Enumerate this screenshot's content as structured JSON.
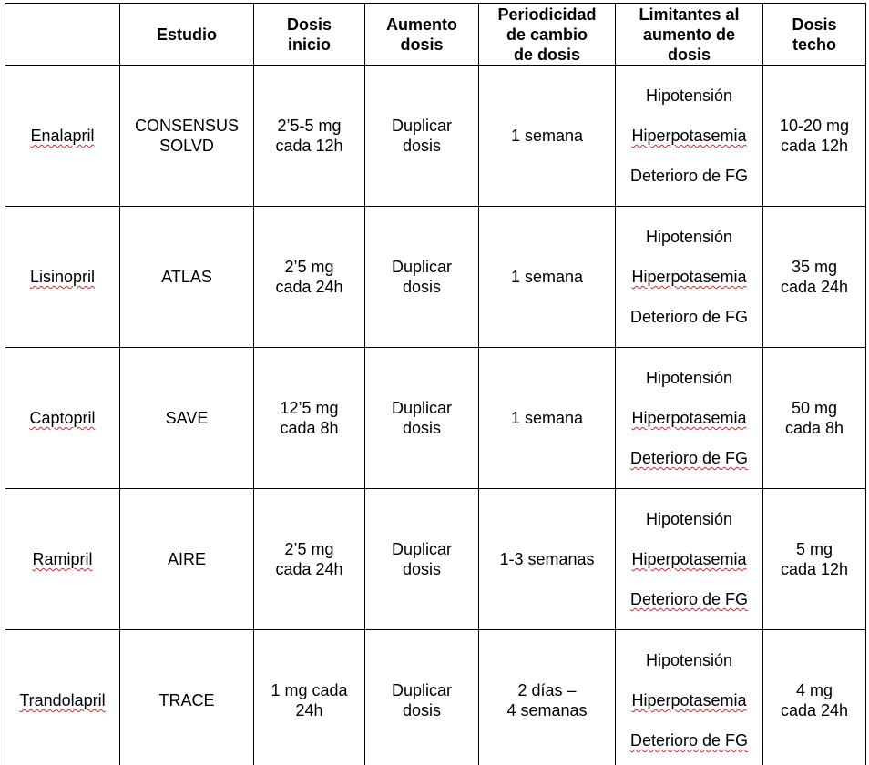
{
  "table": {
    "headers": [
      "",
      "Estudio",
      "Dosis\ninicio",
      "Aumento\ndosis",
      "Periodicidad\nde cambio\nde dosis",
      "Limitantes al\naumento de\ndosis",
      "Dosis\ntecho"
    ],
    "rows": [
      {
        "drug": "Enalapril",
        "study": "CONSENSUS\nSOLVD",
        "start_dose": "2’5-5 mg\ncada 12h",
        "increase": "Duplicar\ndosis",
        "period": "1 semana",
        "limits": [
          "Hipotensión",
          "Hiperpotasemia",
          "Deterioro de FG"
        ],
        "max_dose": "10-20 mg\ncada 12h"
      },
      {
        "drug": "Lisinopril",
        "study": "ATLAS",
        "start_dose": "2’5 mg\ncada 24h",
        "increase": "Duplicar\ndosis",
        "period": "1 semana",
        "limits": [
          "Hipotensión",
          "Hiperpotasemia",
          "Deterioro de FG"
        ],
        "max_dose": "35 mg\ncada 24h"
      },
      {
        "drug": "Captopril",
        "study": "SAVE",
        "start_dose": "12’5 mg\ncada 8h",
        "increase": "Duplicar\ndosis",
        "period": "1 semana",
        "limits": [
          "Hipotensión",
          "Hiperpotasemia",
          "Deterioro de FG"
        ],
        "max_dose": "50 mg\ncada 8h"
      },
      {
        "drug": "Ramipril",
        "study": "AIRE",
        "start_dose": "2’5 mg\ncada 24h",
        "increase": "Duplicar\ndosis",
        "period": "1-3 semanas",
        "limits": [
          "Hipotensión",
          "Hiperpotasemia",
          "Deterioro de FG"
        ],
        "max_dose": "5 mg\ncada 12h"
      },
      {
        "drug": "Trandolapril",
        "study": "TRACE",
        "start_dose": "1 mg cada\n24h",
        "increase": "Duplicar\ndosis",
        "period": "2 días –\n4 semanas",
        "limits": [
          "Hipotensión",
          "Hiperpotasemia",
          "Deterioro de FG"
        ],
        "max_dose": "4 mg\ncada 24h"
      }
    ]
  },
  "colors": {
    "border": "#000000",
    "spellcheck_underline": "#d9262b"
  }
}
